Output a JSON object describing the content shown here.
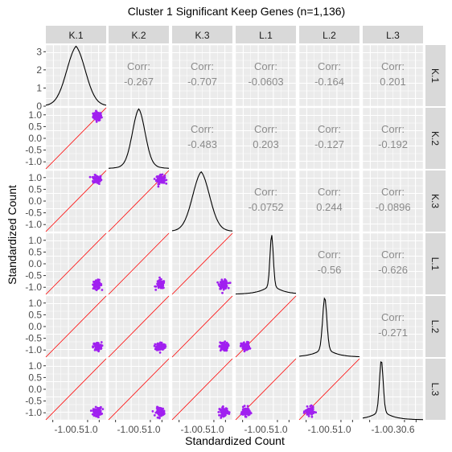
{
  "chart_data": {
    "type": "scatter-matrix",
    "title": "Cluster 1 Significant Keep Genes (n=1,136)",
    "xlabel": "Standardized Count",
    "ylabel": "Standardized Count",
    "variables": [
      "K.1",
      "K.2",
      "K.3",
      "L.1",
      "L.2",
      "L.3"
    ],
    "axis_range": [
      -1.3,
      1.3
    ],
    "density_ylim": [
      0,
      3.3
    ],
    "y_ticks_first_row": [
      "3",
      "2",
      "1",
      "0"
    ],
    "y_ticks_other_rows": [
      "1.0",
      "0.5",
      "0.0",
      "-0.5",
      "-1.0"
    ],
    "x_tick_labels": [
      "-1.00.51.0",
      "-1.00.51.0",
      "-1.00.51.0",
      "-1.00.51.0",
      "-1.00.51.0",
      "-1.00.30.6"
    ],
    "corr_label": "Corr:",
    "correlations": [
      {
        "row": "K.1",
        "col": "K.2",
        "value": "-0.267"
      },
      {
        "row": "K.1",
        "col": "K.3",
        "value": "-0.707"
      },
      {
        "row": "K.1",
        "col": "L.1",
        "value": "-0.0603"
      },
      {
        "row": "K.1",
        "col": "L.2",
        "value": "-0.164"
      },
      {
        "row": "K.1",
        "col": "L.3",
        "value": "0.201"
      },
      {
        "row": "K.2",
        "col": "K.3",
        "value": "-0.483"
      },
      {
        "row": "K.2",
        "col": "L.1",
        "value": "0.203"
      },
      {
        "row": "K.2",
        "col": "L.2",
        "value": "-0.127"
      },
      {
        "row": "K.2",
        "col": "L.3",
        "value": "-0.192"
      },
      {
        "row": "K.3",
        "col": "L.1",
        "value": "-0.0752"
      },
      {
        "row": "K.3",
        "col": "L.2",
        "value": "0.244"
      },
      {
        "row": "K.3",
        "col": "L.3",
        "value": "-0.0896"
      },
      {
        "row": "L.1",
        "col": "L.2",
        "value": "-0.56"
      },
      {
        "row": "L.1",
        "col": "L.3",
        "value": "-0.626"
      },
      {
        "row": "L.2",
        "col": "L.3",
        "value": "-0.271"
      }
    ],
    "cluster_centers": {
      "K.1": 0.92,
      "K.2": 0.94,
      "K.3": 0.92,
      "L.1": -0.88,
      "L.2": -0.85,
      "L.3": -0.95
    },
    "cluster_spread": 0.09,
    "densities": [
      {
        "variable": "K.1",
        "mode": 0.0,
        "peak": 3.3,
        "width": 0.42
      },
      {
        "variable": "K.2",
        "mode": 0.0,
        "peak": 3.3,
        "width": 0.28
      },
      {
        "variable": "K.3",
        "mode": -0.05,
        "peak": 3.3,
        "width": 0.38
      },
      {
        "variable": "L.1",
        "mode": 0.25,
        "peak": 3.3,
        "width": 0.07
      },
      {
        "variable": "L.2",
        "mode": -0.2,
        "peak": 3.3,
        "width": 0.09
      },
      {
        "variable": "L.3",
        "mode": -0.5,
        "peak": 3.3,
        "width": 0.08
      }
    ],
    "reference_line": "y = x",
    "grid": true,
    "colors": {
      "points": "#a020f0",
      "reference": "#ff0000",
      "density": "#000000",
      "panel": "#ebebeb",
      "strip": "#d9d9d9"
    }
  }
}
